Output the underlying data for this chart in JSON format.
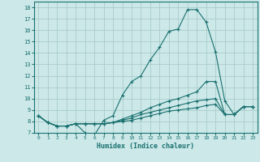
{
  "xlabel": "Humidex (Indice chaleur)",
  "bg_color": "#cce8e8",
  "grid_color": "#aacccc",
  "line_color": "#1a7070",
  "xlim": [
    -0.5,
    23.5
  ],
  "ylim": [
    7,
    18.5
  ],
  "xtick_labels": [
    "0",
    "1",
    "2",
    "3",
    "4",
    "5",
    "6",
    "7",
    "8",
    "9",
    "10",
    "11",
    "12",
    "13",
    "14",
    "15",
    "16",
    "17",
    "18",
    "19",
    "20",
    "21",
    "22",
    "23"
  ],
  "ytick_labels": [
    "7",
    "8",
    "9",
    "10",
    "11",
    "12",
    "13",
    "14",
    "15",
    "16",
    "17",
    "18"
  ],
  "ytick_vals": [
    7,
    8,
    9,
    10,
    11,
    12,
    13,
    14,
    15,
    16,
    17,
    18
  ],
  "series": [
    [
      8.5,
      7.9,
      7.6,
      7.6,
      7.8,
      7.0,
      6.8,
      8.1,
      8.5,
      10.3,
      11.5,
      12.0,
      13.4,
      14.5,
      15.9,
      16.1,
      17.8,
      17.8,
      16.7,
      14.1,
      9.8,
      8.6,
      9.3,
      9.3
    ],
    [
      8.5,
      7.9,
      7.6,
      7.6,
      7.8,
      7.8,
      7.8,
      7.8,
      7.9,
      8.2,
      8.5,
      8.8,
      9.2,
      9.5,
      9.8,
      10.0,
      10.3,
      10.6,
      11.5,
      11.5,
      8.6,
      8.6,
      9.3,
      9.3
    ],
    [
      8.5,
      7.9,
      7.6,
      7.6,
      7.8,
      7.8,
      7.8,
      7.8,
      7.9,
      8.1,
      8.3,
      8.6,
      8.8,
      9.0,
      9.2,
      9.4,
      9.6,
      9.8,
      9.9,
      10.0,
      8.6,
      8.6,
      9.3,
      9.3
    ],
    [
      8.5,
      7.9,
      7.6,
      7.6,
      7.8,
      7.8,
      7.8,
      7.8,
      7.9,
      8.0,
      8.1,
      8.3,
      8.5,
      8.7,
      8.9,
      9.0,
      9.1,
      9.2,
      9.4,
      9.5,
      8.6,
      8.6,
      9.3,
      9.3
    ]
  ]
}
